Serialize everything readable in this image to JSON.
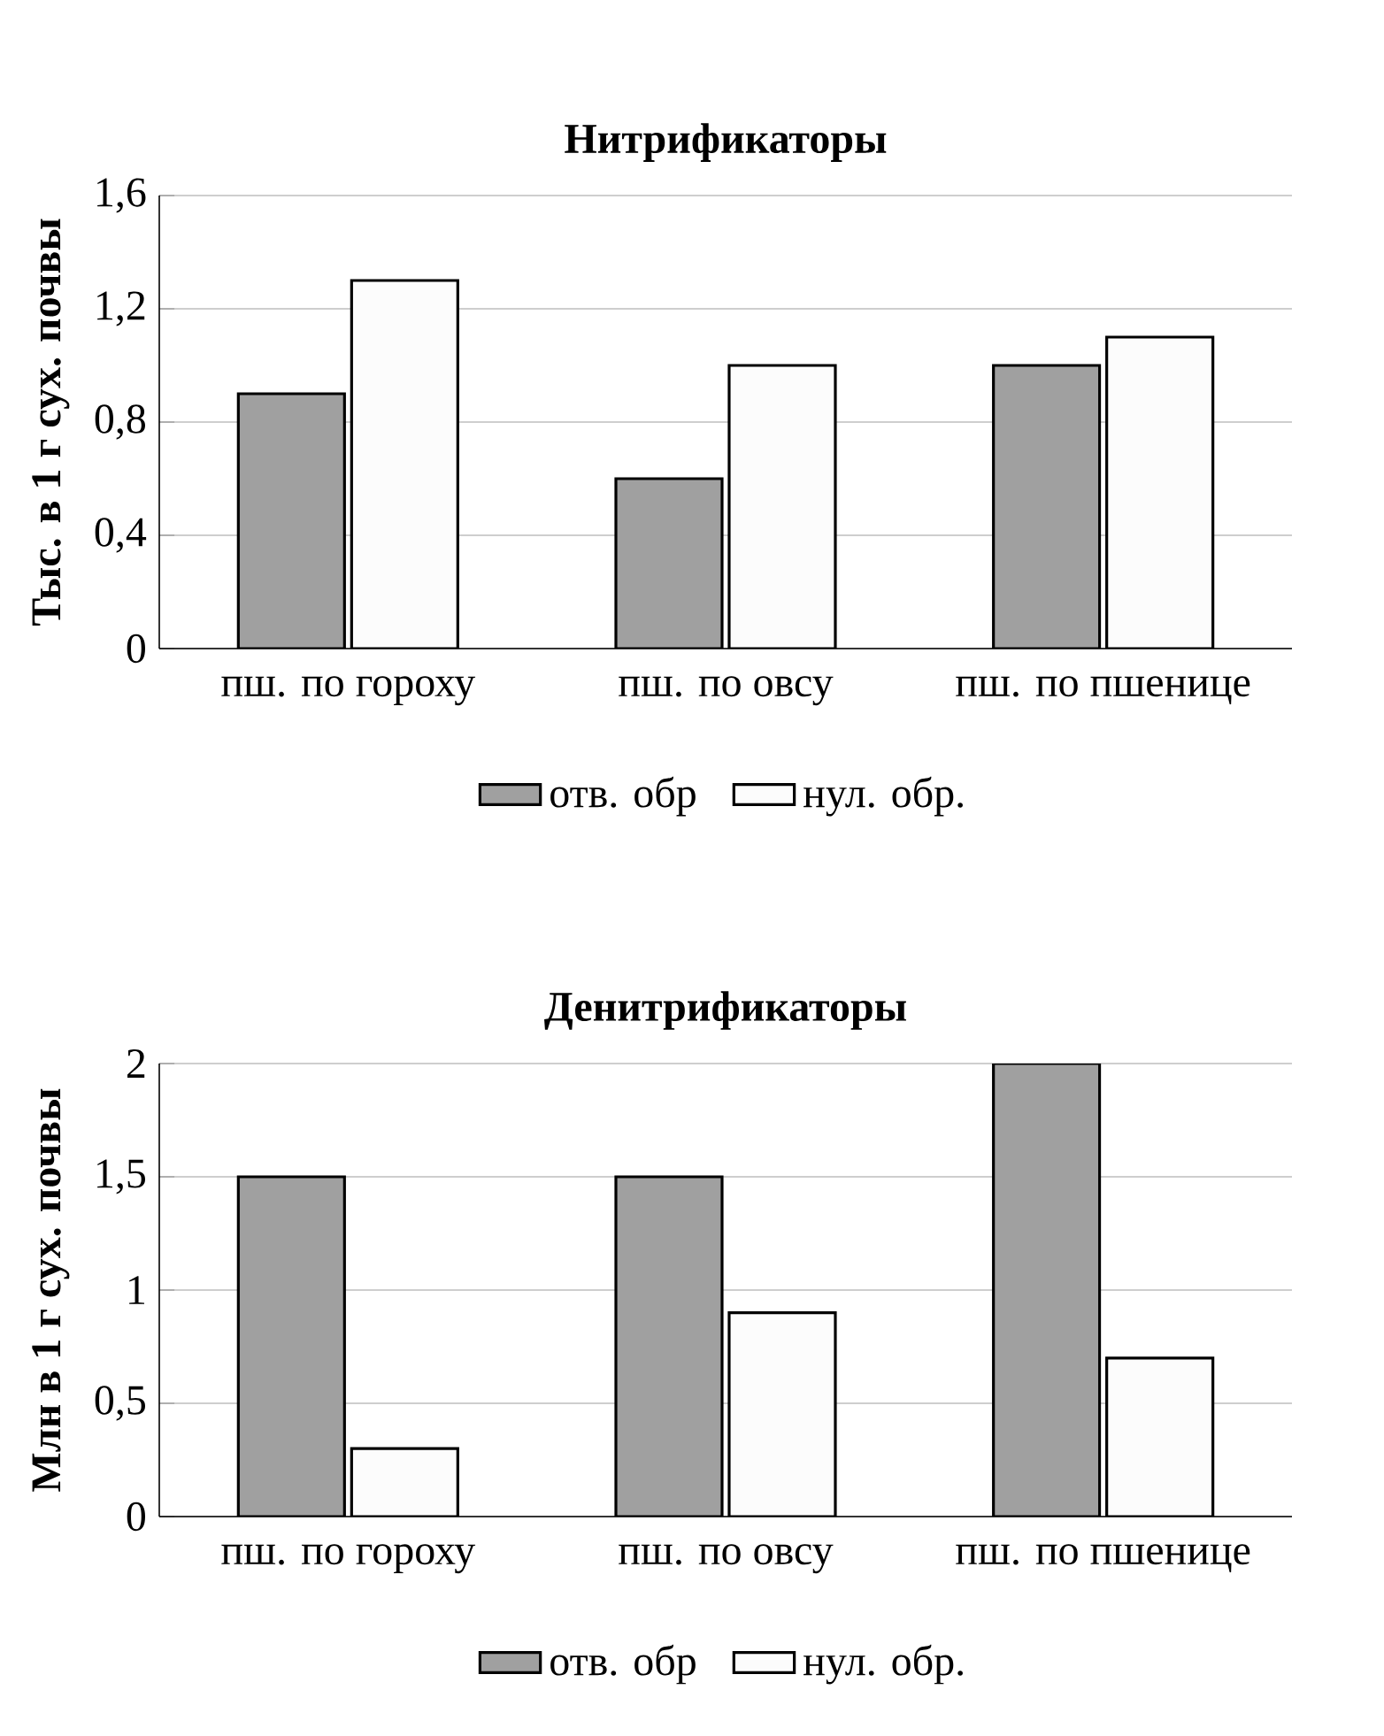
{
  "chart_data": [
    {
      "type": "bar",
      "title": "Нитрификаторы",
      "ylabel": "Тыс. в 1 г сух. почвы",
      "categories": [
        "пш. по гороху",
        "пш. по овсу",
        "пш. по пшенице"
      ],
      "series": [
        {
          "name": "отв. обр",
          "color": "#a0a0a0",
          "values": [
            0.9,
            0.6,
            1.0
          ]
        },
        {
          "name": "нул. обр.",
          "color": "#fcfcfc",
          "values": [
            1.3,
            1.0,
            1.1
          ]
        }
      ],
      "ylim": [
        0,
        1.6
      ],
      "yticks": [
        0,
        {
          "value": 0.4,
          "label": "0,4"
        },
        {
          "value": 0.8,
          "label": "0,8"
        },
        {
          "value": 1.2,
          "label": "1,2"
        },
        {
          "value": 1.6,
          "label": "1,6"
        }
      ],
      "grid": "y",
      "legend": "bottom"
    },
    {
      "type": "bar",
      "title": "Денитрификаторы",
      "ylabel": "Млн в 1 г сух. почвы",
      "categories": [
        "пш. по гороху",
        "пш. по овсу",
        "пш. по пшенице"
      ],
      "series": [
        {
          "name": "отв. обр",
          "color": "#a0a0a0",
          "values": [
            1.5,
            1.5,
            2.0
          ]
        },
        {
          "name": "нул. обр.",
          "color": "#fcfcfc",
          "values": [
            0.3,
            0.9,
            0.7
          ]
        }
      ],
      "ylim": [
        0,
        2
      ],
      "yticks": [
        0,
        {
          "value": 0.5,
          "label": "0,5"
        },
        1,
        {
          "value": 1.5,
          "label": "1,5"
        },
        2
      ],
      "grid": "y",
      "legend": "bottom"
    }
  ]
}
